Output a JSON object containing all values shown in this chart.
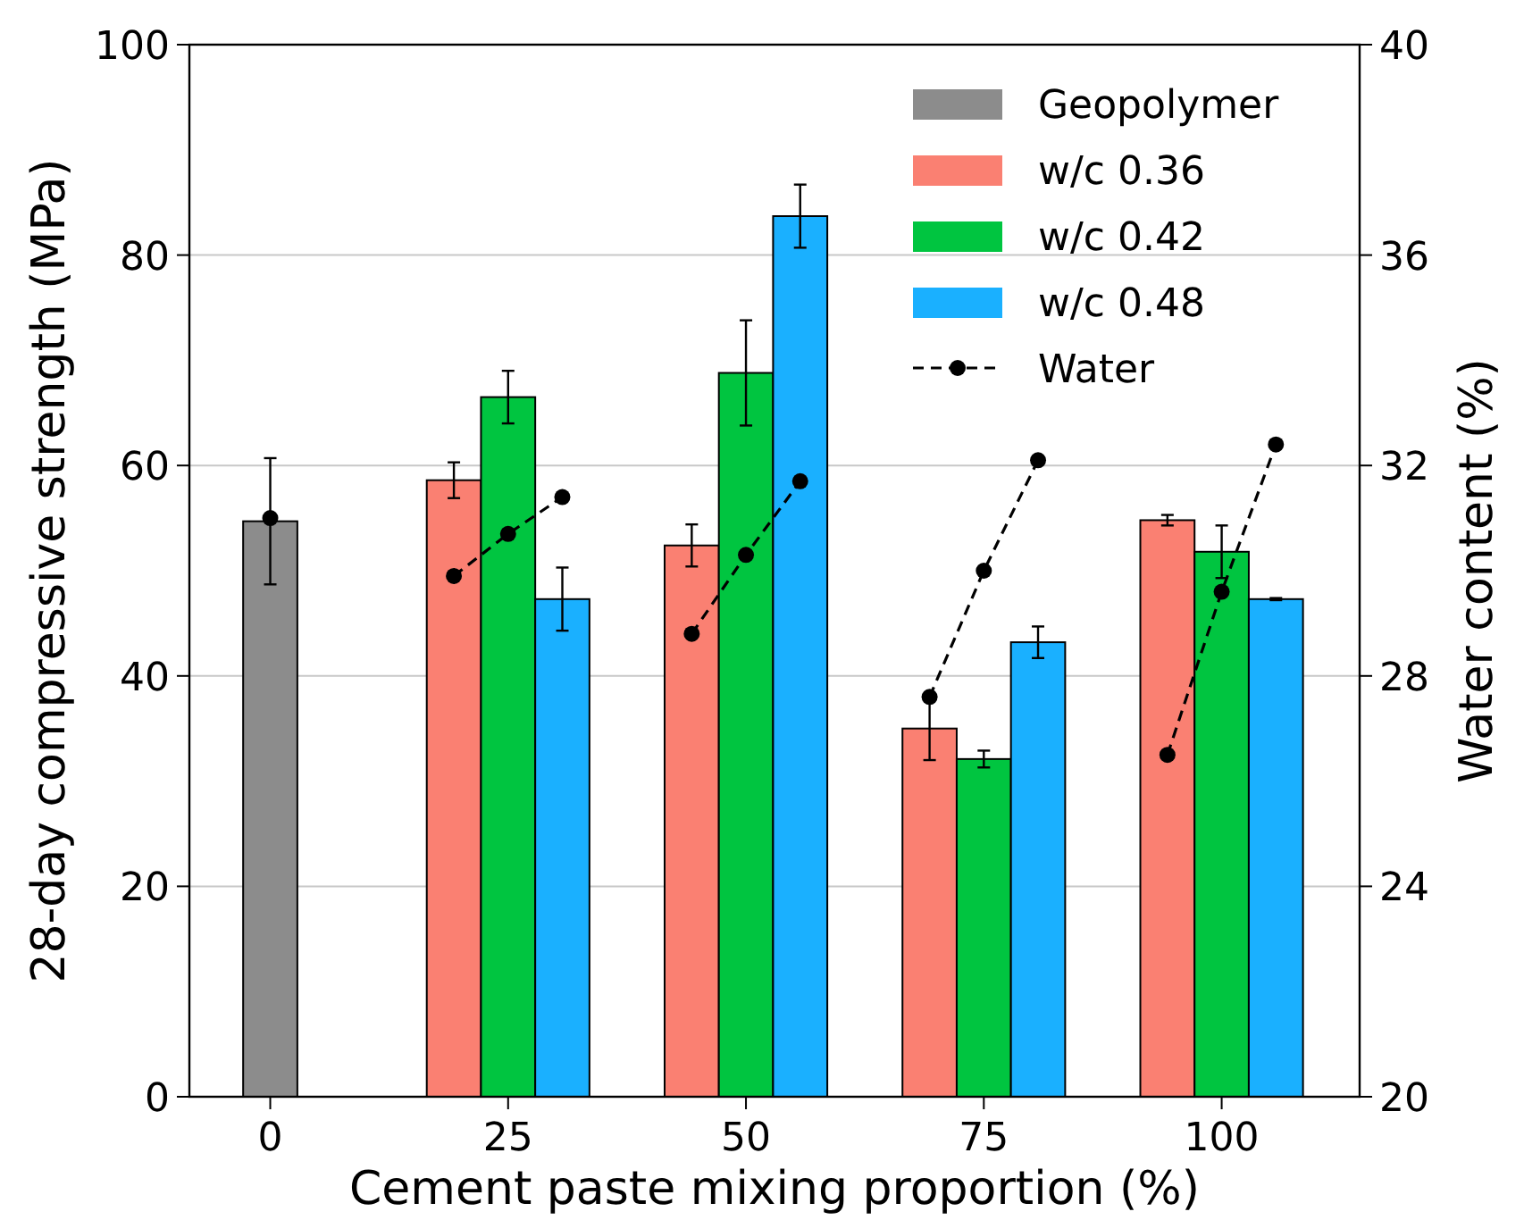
{
  "chart_data": {
    "type": "bar",
    "xlabel": "Cement paste mixing proportion (%)",
    "ylabel": "28-day compressive strength (MPa)",
    "y2label": "Water content (%)",
    "xlim": [
      -8.5,
      114.5
    ],
    "xticks": [
      0,
      25,
      50,
      75,
      100
    ],
    "ylim": [
      0,
      100
    ],
    "yticks": [
      0,
      20,
      40,
      60,
      80,
      100
    ],
    "y2lim": [
      20,
      40
    ],
    "y2ticks": [
      20,
      24,
      28,
      32,
      36,
      40
    ],
    "grid": "y",
    "legend": "top right",
    "series": [
      {
        "name": "Geopolymer",
        "color": "#8c8c8c",
        "x": [
          0
        ],
        "values": [
          54.7
        ],
        "errors": [
          6
        ]
      },
      {
        "name": "w/c 0.36",
        "color": "#fa8072",
        "x": [
          19.3,
          44.3,
          69.3,
          94.3
        ],
        "values": [
          58.6,
          52.4,
          35.0,
          54.8
        ],
        "errors": [
          1.7,
          2,
          3,
          0.5
        ]
      },
      {
        "name": "w/c 0.42",
        "color": "#00c540",
        "x": [
          25,
          50,
          75,
          100
        ],
        "values": [
          66.5,
          68.8,
          32.1,
          51.8
        ],
        "errors": [
          2.5,
          5,
          0.8,
          2.5
        ]
      },
      {
        "name": "w/c 0.48",
        "color": "#1ab0ff",
        "x": [
          30.7,
          55.7,
          80.7,
          105.7
        ],
        "values": [
          47.3,
          83.7,
          43.2,
          47.3
        ],
        "errors": [
          3,
          3,
          1.5,
          0.1
        ]
      },
      {
        "name": "Water",
        "type": "line",
        "axis": "y2",
        "color": "#000000",
        "marker": "circle",
        "line_style": "dashed",
        "x": [
          0,
          12,
          19.3,
          25,
          30.7,
          37.5,
          44.3,
          50,
          55.7,
          62.5,
          69.3,
          75,
          80.7,
          87.5,
          94.3,
          100,
          105.7
        ],
        "values": [
          31.0,
          null,
          29.9,
          30.7,
          31.4,
          null,
          28.8,
          30.3,
          31.7,
          null,
          27.6,
          30.0,
          32.1,
          null,
          26.5,
          29.6,
          32.4
        ]
      }
    ]
  }
}
